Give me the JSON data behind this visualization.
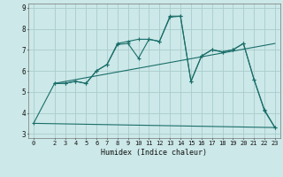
{
  "xlabel": "Humidex (Indice chaleur)",
  "bg_color": "#cce8e8",
  "grid_color": "#aacccc",
  "line_color": "#1a6e6a",
  "xlim": [
    -0.5,
    23.5
  ],
  "ylim": [
    2.8,
    9.2
  ],
  "yticks": [
    3,
    4,
    5,
    6,
    7,
    8,
    9
  ],
  "xticks": [
    0,
    2,
    3,
    4,
    5,
    6,
    7,
    8,
    9,
    10,
    11,
    12,
    13,
    14,
    15,
    16,
    17,
    18,
    19,
    20,
    21,
    22,
    23
  ],
  "lines": [
    {
      "x": [
        0,
        2,
        3,
        4,
        5,
        6,
        7,
        8,
        9,
        10,
        11,
        12,
        13,
        14,
        15,
        16,
        17,
        18,
        19,
        20,
        21,
        22,
        23
      ],
      "y": [
        3.5,
        5.4,
        5.4,
        5.5,
        5.4,
        6.0,
        6.3,
        7.3,
        7.4,
        7.5,
        7.5,
        7.4,
        8.6,
        8.6,
        5.5,
        6.7,
        7.0,
        6.9,
        7.0,
        7.3,
        5.6,
        4.1,
        3.3
      ],
      "marker": true
    },
    {
      "x": [
        2,
        3,
        4,
        5,
        6,
        7,
        8,
        9,
        10,
        11,
        12,
        13,
        14,
        15,
        16,
        17,
        18,
        19,
        20,
        21,
        22,
        23
      ],
      "y": [
        5.4,
        5.4,
        5.5,
        5.4,
        6.0,
        6.3,
        7.25,
        7.3,
        6.6,
        7.5,
        7.4,
        8.55,
        8.6,
        5.5,
        6.7,
        7.0,
        6.9,
        7.0,
        7.3,
        5.6,
        4.15,
        3.3
      ],
      "marker": true
    },
    {
      "x": [
        2,
        23
      ],
      "y": [
        5.4,
        7.3
      ],
      "marker": false
    },
    {
      "x": [
        0,
        23
      ],
      "y": [
        3.5,
        3.3
      ],
      "marker": false
    }
  ]
}
